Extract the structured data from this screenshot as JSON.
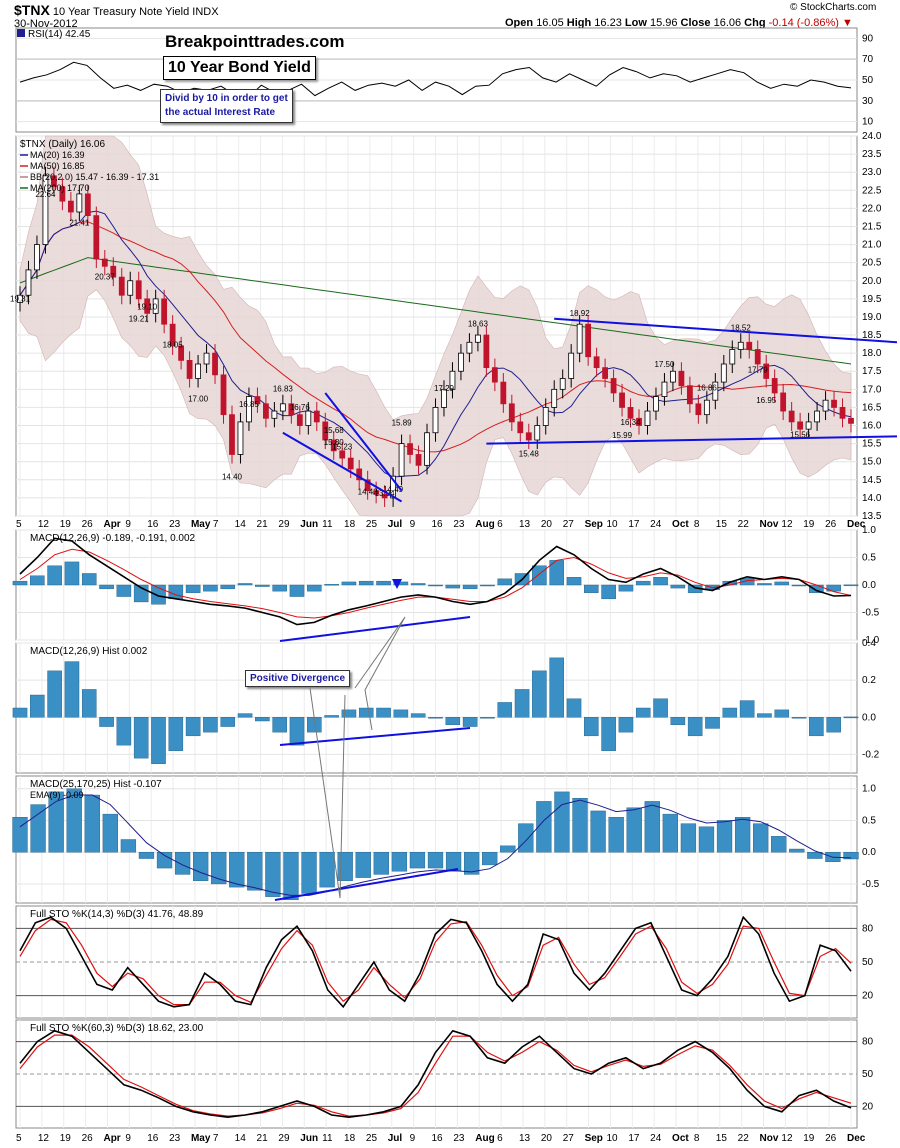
{
  "header": {
    "symbol": "$TNX",
    "name": "10 Year Treasury Note Yield",
    "exchange": "INDX",
    "date": "30-Nov-2012",
    "open_label": "Open",
    "open": "16.05",
    "high_label": "High",
    "high": "16.23",
    "low_label": "Low",
    "low": "15.96",
    "close_label": "Close",
    "close": "16.06",
    "chg_label": "Chg",
    "chg": "-0.14 (-0.86%)",
    "credit": "© StockCharts.com"
  },
  "annotations": {
    "brand": "Breakpointtrades.com",
    "title": "10 Year Bond Yield",
    "note_line1": "Divid by 10 in order to get",
    "note_line2": "the actual Interest Rate",
    "divergence": "Positive Divergence"
  },
  "colors": {
    "up": "#000000",
    "down": "#c0142c",
    "ma20": "#1f1f8f",
    "ma50": "#d42020",
    "ma200": "#1a6b1a",
    "band": "#e8d6d6",
    "hist": "#3a8fc4",
    "trend": "#1010e0",
    "stoK": "#000000",
    "stoD": "#e01010"
  },
  "chart_data": [
    {
      "type": "line",
      "panel": "rsi",
      "title": "RSI(14) 42.45",
      "ylim": [
        0,
        100
      ],
      "yticks": [
        10,
        30,
        50,
        70,
        90
      ],
      "values": [
        48,
        52,
        55,
        60,
        67,
        64,
        52,
        42,
        45,
        40,
        46,
        44,
        38,
        42,
        40,
        44,
        36,
        33,
        45,
        38,
        40,
        46,
        35,
        42,
        48,
        40,
        45,
        47,
        44,
        50,
        40,
        48,
        44,
        36,
        44,
        45,
        56,
        60,
        62,
        52,
        48,
        56,
        50,
        44,
        55,
        62,
        58,
        52,
        56,
        54,
        48,
        52,
        56,
        60,
        57,
        48,
        42,
        46,
        44,
        50,
        48,
        44,
        42.45
      ]
    },
    {
      "type": "candlestick",
      "panel": "price",
      "title": "$TNX (Daily) 16.06",
      "legend": [
        {
          "label": "MA(20) 16.39",
          "color": "#1f1f8f"
        },
        {
          "label": "MA(50) 16.85",
          "color": "#d42020"
        },
        {
          "label": "BB(20,2.0) 15.47 - 16.39 - 17.31",
          "color": "#b08080"
        },
        {
          "label": "MA(200) 17.70",
          "color": "#1a6b1a"
        }
      ],
      "ylim": [
        13.5,
        24.0
      ],
      "yticks": [
        13.5,
        14.0,
        14.5,
        15.0,
        15.5,
        16.0,
        16.5,
        17.0,
        17.5,
        18.0,
        18.5,
        19.0,
        19.5,
        20.0,
        20.5,
        21.0,
        21.5,
        22.0,
        22.5,
        23.0,
        23.5,
        24.0
      ],
      "xticks": [
        "5",
        "12",
        "19",
        "26",
        "Apr",
        "9",
        "16",
        "23",
        "May",
        "7",
        "14",
        "21",
        "29",
        "Jun",
        "11",
        "18",
        "25",
        "Jul",
        "9",
        "16",
        "23",
        "Aug",
        "6",
        "13",
        "20",
        "27",
        "Sep",
        "10",
        "17",
        "24",
        "Oct",
        "8",
        "15",
        "22",
        "Nov",
        "12",
        "19",
        "26",
        "Dec"
      ],
      "close": [
        19.6,
        20.3,
        21.0,
        22.9,
        22.6,
        22.2,
        21.9,
        22.4,
        21.8,
        20.6,
        20.4,
        20.1,
        19.6,
        20.0,
        19.5,
        19.1,
        19.5,
        18.8,
        18.2,
        17.8,
        17.3,
        17.7,
        18.0,
        17.4,
        16.3,
        15.2,
        16.1,
        16.8,
        16.6,
        16.2,
        16.4,
        16.6,
        16.3,
        16.0,
        16.4,
        16.1,
        15.6,
        15.3,
        15.1,
        14.8,
        14.5,
        14.2,
        14.1,
        14.0,
        14.6,
        15.5,
        15.2,
        14.9,
        15.8,
        16.5,
        17.0,
        17.5,
        18.0,
        18.3,
        18.5,
        17.6,
        17.2,
        16.6,
        16.1,
        15.8,
        15.6,
        16.0,
        16.5,
        17.0,
        17.3,
        18.0,
        18.8,
        17.9,
        17.6,
        17.3,
        16.9,
        16.5,
        16.2,
        16.0,
        16.4,
        16.8,
        17.2,
        17.5,
        17.1,
        16.6,
        16.3,
        16.7,
        17.2,
        17.7,
        18.1,
        18.3,
        18.1,
        17.7,
        17.3,
        16.9,
        16.4,
        16.1,
        15.9,
        16.1,
        16.4,
        16.7,
        16.5,
        16.2,
        16.06
      ],
      "annotations": [
        "19.31",
        "22.64",
        "21.41",
        "20.37",
        "19.10",
        "19.21",
        "18.05",
        "17.00",
        "14.40",
        "16.85",
        "16.83",
        "15.80",
        "15.68",
        "16.76",
        "15.23",
        "14.43",
        "13.94",
        "14.49",
        "15.89",
        "17.29",
        "18.63",
        "15.48",
        "18.92",
        "15.99",
        "17.50",
        "16.34",
        "18.52",
        "17.79",
        "16.86",
        "16.95",
        "15.56"
      ]
    },
    {
      "type": "line",
      "panel": "macd",
      "title": "MACD(12,26,9) -0.189, -0.191, 0.002",
      "ylim": [
        -1.0,
        1.0
      ],
      "yticks": [
        -1.0,
        -0.5,
        0.0,
        0.5,
        1.0
      ],
      "series": [
        {
          "name": "MACD",
          "values": [
            0.2,
            0.5,
            0.85,
            0.8,
            0.55,
            0.35,
            0.15,
            -0.05,
            -0.2,
            -0.25,
            -0.3,
            -0.35,
            -0.38,
            -0.42,
            -0.5,
            -0.58,
            -0.72,
            -0.68,
            -0.55,
            -0.45,
            -0.38,
            -0.3,
            -0.22,
            -0.18,
            -0.22,
            -0.3,
            -0.35,
            -0.3,
            -0.15,
            0.1,
            0.45,
            0.7,
            0.55,
            0.3,
            0.1,
            0.05,
            0.2,
            0.3,
            0.15,
            -0.05,
            -0.1,
            0.05,
            0.15,
            0.1,
            0.15,
            0.1,
            -0.1,
            -0.2,
            -0.19
          ]
        },
        {
          "name": "Signal",
          "values": [
            0.1,
            0.3,
            0.55,
            0.65,
            0.6,
            0.45,
            0.28,
            0.1,
            -0.05,
            -0.18,
            -0.25,
            -0.3,
            -0.34,
            -0.38,
            -0.43,
            -0.5,
            -0.58,
            -0.6,
            -0.56,
            -0.5,
            -0.42,
            -0.35,
            -0.28,
            -0.22,
            -0.22,
            -0.26,
            -0.3,
            -0.3,
            -0.22,
            -0.05,
            0.2,
            0.45,
            0.5,
            0.38,
            0.22,
            0.12,
            0.15,
            0.22,
            0.18,
            0.05,
            -0.05,
            0.0,
            0.08,
            0.1,
            0.12,
            0.1,
            0.0,
            -0.12,
            -0.19
          ]
        }
      ]
    },
    {
      "type": "bar",
      "panel": "macd-hist",
      "title": "MACD(12,26,9) Hist 0.002",
      "ylim": [
        -0.3,
        0.4
      ],
      "yticks": [
        -0.2,
        0.0,
        0.2,
        0.4
      ],
      "values": [
        0.05,
        0.12,
        0.25,
        0.3,
        0.15,
        -0.05,
        -0.15,
        -0.22,
        -0.25,
        -0.18,
        -0.1,
        -0.08,
        -0.05,
        0.02,
        -0.02,
        -0.08,
        -0.15,
        -0.08,
        0.01,
        0.04,
        0.05,
        0.05,
        0.04,
        0.02,
        0.0,
        -0.04,
        -0.05,
        0.0,
        0.08,
        0.15,
        0.25,
        0.32,
        0.1,
        -0.1,
        -0.18,
        -0.08,
        0.05,
        0.1,
        -0.04,
        -0.1,
        -0.06,
        0.05,
        0.09,
        0.02,
        0.04,
        0.0,
        -0.1,
        -0.08,
        0.002
      ]
    },
    {
      "type": "bar",
      "panel": "macd-long",
      "title": "MACD(25,170,25) Hist -0.107",
      "legend": [
        {
          "label": "EMA(9) -0.09",
          "color": "#1f1f8f"
        }
      ],
      "ylim": [
        -0.8,
        1.2
      ],
      "yticks": [
        -0.5,
        0.0,
        0.5,
        1.0
      ],
      "values": [
        0.55,
        0.75,
        0.95,
        1.0,
        0.9,
        0.6,
        0.2,
        -0.1,
        -0.25,
        -0.35,
        -0.45,
        -0.5,
        -0.55,
        -0.6,
        -0.7,
        -0.75,
        -0.65,
        -0.55,
        -0.45,
        -0.4,
        -0.35,
        -0.3,
        -0.25,
        -0.25,
        -0.3,
        -0.35,
        -0.2,
        0.1,
        0.45,
        0.8,
        0.95,
        0.85,
        0.65,
        0.55,
        0.7,
        0.8,
        0.6,
        0.45,
        0.4,
        0.5,
        0.55,
        0.45,
        0.25,
        0.05,
        -0.1,
        -0.15,
        -0.107
      ],
      "ema": [
        0.4,
        0.6,
        0.8,
        0.9,
        0.9,
        0.75,
        0.45,
        0.15,
        -0.05,
        -0.2,
        -0.32,
        -0.42,
        -0.5,
        -0.56,
        -0.63,
        -0.68,
        -0.68,
        -0.62,
        -0.54,
        -0.47,
        -0.41,
        -0.36,
        -0.31,
        -0.28,
        -0.29,
        -0.31,
        -0.26,
        -0.1,
        0.18,
        0.5,
        0.75,
        0.82,
        0.74,
        0.64,
        0.67,
        0.74,
        0.66,
        0.54,
        0.46,
        0.48,
        0.52,
        0.48,
        0.35,
        0.18,
        0.02,
        -0.08,
        -0.09
      ]
    },
    {
      "type": "line",
      "panel": "sto1",
      "title": "Full STO %K(14,3) %D(3) 41.76, 48.89",
      "ylim": [
        0,
        100
      ],
      "yticks": [
        20,
        50,
        80
      ],
      "series": [
        {
          "name": "%K",
          "values": [
            60,
            85,
            90,
            80,
            55,
            30,
            25,
            45,
            30,
            15,
            10,
            12,
            40,
            30,
            15,
            12,
            45,
            70,
            82,
            60,
            25,
            10,
            30,
            50,
            25,
            15,
            40,
            75,
            88,
            85,
            60,
            30,
            15,
            30,
            75,
            70,
            40,
            25,
            40,
            60,
            80,
            85,
            55,
            25,
            20,
            35,
            55,
            90,
            75,
            40,
            15,
            20,
            65,
            60,
            41.76
          ]
        },
        {
          "name": "%D",
          "values": [
            55,
            78,
            88,
            85,
            65,
            40,
            28,
            40,
            35,
            20,
            12,
            12,
            32,
            32,
            20,
            14,
            38,
            62,
            78,
            65,
            32,
            15,
            25,
            45,
            30,
            18,
            35,
            68,
            84,
            86,
            65,
            38,
            20,
            28,
            65,
            72,
            48,
            30,
            36,
            55,
            75,
            82,
            62,
            32,
            22,
            30,
            48,
            82,
            80,
            50,
            22,
            20,
            55,
            62,
            48.89
          ]
        }
      ]
    },
    {
      "type": "line",
      "panel": "sto2",
      "title": "Full STO %K(60,3) %D(3) 18.62, 23.00",
      "ylim": [
        0,
        100
      ],
      "yticks": [
        20,
        50,
        80
      ],
      "series": [
        {
          "name": "%K",
          "values": [
            60,
            80,
            90,
            85,
            70,
            55,
            40,
            35,
            28,
            20,
            15,
            12,
            10,
            12,
            15,
            20,
            25,
            20,
            12,
            10,
            12,
            15,
            20,
            40,
            70,
            90,
            85,
            65,
            60,
            75,
            85,
            70,
            55,
            50,
            60,
            65,
            55,
            60,
            72,
            80,
            70,
            55,
            35,
            20,
            15,
            30,
            35,
            25,
            18.62
          ]
        },
        {
          "name": "%D",
          "values": [
            55,
            75,
            86,
            86,
            75,
            60,
            45,
            38,
            30,
            22,
            16,
            13,
            11,
            12,
            14,
            18,
            23,
            21,
            15,
            11,
            12,
            14,
            18,
            33,
            60,
            85,
            85,
            70,
            62,
            70,
            80,
            72,
            58,
            52,
            58,
            63,
            57,
            59,
            68,
            76,
            72,
            58,
            40,
            25,
            18,
            27,
            33,
            28,
            23.0
          ]
        }
      ]
    }
  ]
}
